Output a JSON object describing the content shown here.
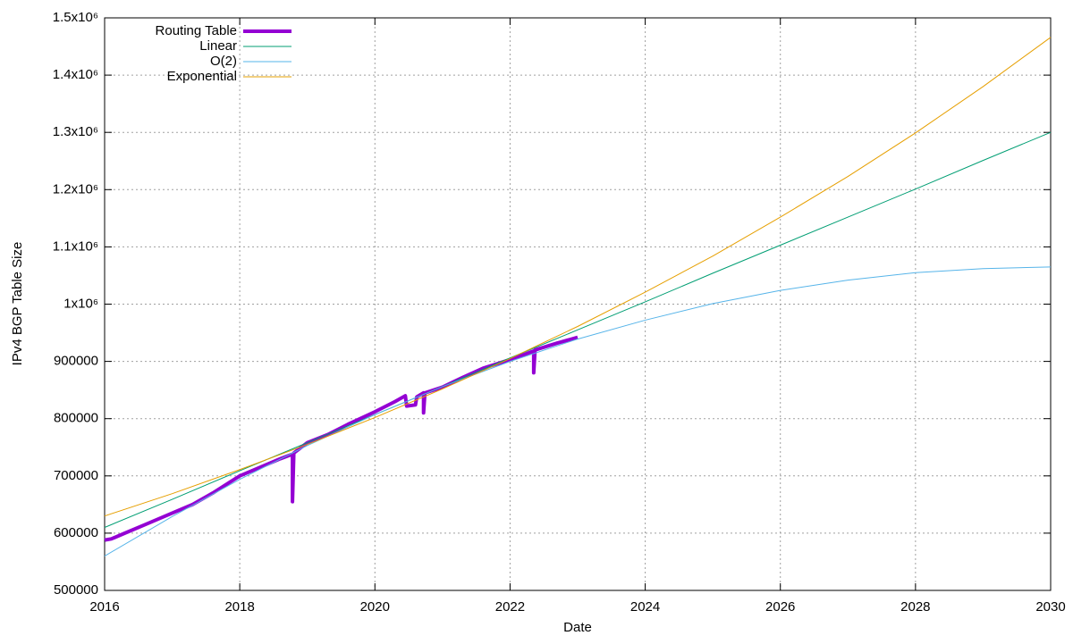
{
  "chart_data": {
    "type": "line",
    "xlabel": "Date",
    "ylabel": "IPv4 BGP Table Size",
    "xlim": [
      2016,
      2030
    ],
    "xticks": [
      2016,
      2018,
      2020,
      2022,
      2024,
      2026,
      2028,
      2030
    ],
    "ylim": [
      500000,
      1500000
    ],
    "yticks": [
      500000,
      600000,
      700000,
      800000,
      900000,
      {
        "value": 1000000,
        "label": "1x10⁶"
      },
      {
        "value": 1100000,
        "label": "1.1x10⁶"
      },
      {
        "value": 1200000,
        "label": "1.2x10⁶"
      },
      {
        "value": 1300000,
        "label": "1.3x10⁶"
      },
      {
        "value": 1400000,
        "label": "1.4x10⁶"
      },
      {
        "value": 1500000,
        "label": "1.5x10⁶"
      }
    ],
    "grid": true,
    "legend": "top-left",
    "series": [
      {
        "name": "Routing Table",
        "color": "#9400d3",
        "x": [
          2016.0,
          2016.1,
          2016.3,
          2016.6,
          2017.0,
          2017.3,
          2017.6,
          2018.0,
          2018.3,
          2018.6,
          2018.78,
          2018.78,
          2018.8,
          2019.0,
          2019.3,
          2019.6,
          2020.0,
          2020.3,
          2020.45,
          2020.47,
          2020.6,
          2020.62,
          2020.72,
          2020.72,
          2020.74,
          2021.0,
          2021.3,
          2021.6,
          2022.0,
          2022.35,
          2022.35,
          2022.37,
          2022.7,
          2023.0
        ],
        "values": [
          588000,
          590000,
          600000,
          615000,
          635000,
          650000,
          670000,
          700000,
          715000,
          730000,
          738000,
          655000,
          740000,
          758000,
          772000,
          790000,
          812000,
          830000,
          840000,
          822000,
          824000,
          838000,
          845000,
          810000,
          845000,
          855000,
          872000,
          888000,
          903000,
          918000,
          880000,
          920000,
          932000,
          942000
        ]
      },
      {
        "name": "Linear",
        "color": "#009e73",
        "x": [
          2016,
          2017,
          2018,
          2019,
          2020,
          2021,
          2022,
          2023,
          2024,
          2025,
          2026,
          2027,
          2028,
          2029,
          2030
        ],
        "values": [
          610000,
          659000,
          709000,
          758000,
          807000,
          856000,
          906000,
          955000,
          1004000,
          1054000,
          1103000,
          1152000,
          1201000,
          1251000,
          1300000
        ]
      },
      {
        "name": "O(2)",
        "color": "#56b4e9",
        "x": [
          2016,
          2017,
          2018,
          2019,
          2020,
          2021,
          2022,
          2023,
          2024,
          2025,
          2026,
          2027,
          2028,
          2029,
          2030
        ],
        "values": [
          560000,
          629000,
          694000,
          753000,
          807000,
          856000,
          900000,
          939000,
          972000,
          1001000,
          1024000,
          1042000,
          1055000,
          1062000,
          1065000
        ]
      },
      {
        "name": "Exponential",
        "color": "#e69f00",
        "x": [
          2016,
          2017,
          2018,
          2019,
          2020,
          2021,
          2022,
          2023,
          2024,
          2025,
          2026,
          2027,
          2028,
          2029,
          2030
        ],
        "values": [
          630000,
          669000,
          711000,
          755000,
          802000,
          852000,
          905000,
          961000,
          1021000,
          1084000,
          1152000,
          1223000,
          1299000,
          1380000,
          1466000
        ]
      }
    ]
  }
}
